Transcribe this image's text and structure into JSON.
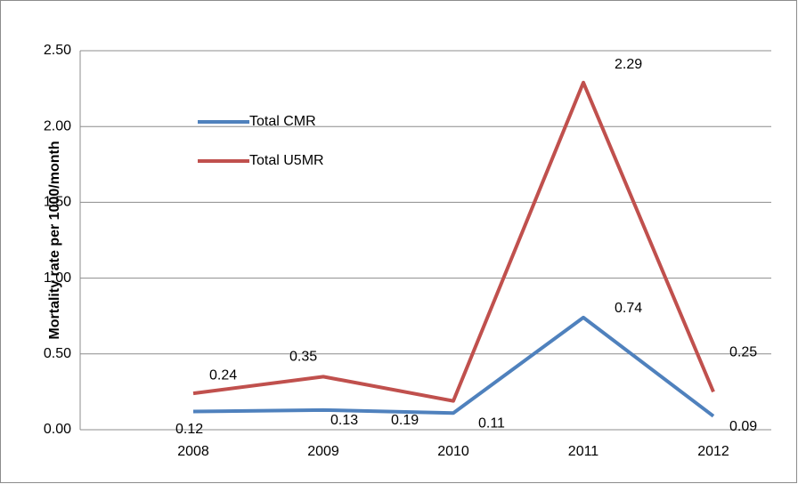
{
  "chart_data": {
    "type": "line",
    "y_label": "Mortality rate per 1000/month",
    "categories": [
      "2008",
      "2009",
      "2010",
      "2011",
      "2012"
    ],
    "series": [
      {
        "name": "Total CMR",
        "color": "#4f81bd",
        "values": [
          0.12,
          0.13,
          0.11,
          0.74,
          0.09
        ]
      },
      {
        "name": "Total U5MR",
        "color": "#c0504d",
        "values": [
          0.24,
          0.35,
          0.19,
          2.29,
          0.25
        ]
      }
    ],
    "ylim": [
      0,
      2.5
    ],
    "yticks": [
      {
        "value": 0,
        "label": "0.00"
      },
      {
        "value": 0.5,
        "label": "0.50"
      },
      {
        "value": 1,
        "label": "1.00"
      },
      {
        "value": 1.5,
        "label": "1.50"
      },
      {
        "value": 2,
        "label": "2.00"
      },
      {
        "value": 2.5,
        "label": "2.50"
      }
    ],
    "grid": true
  }
}
